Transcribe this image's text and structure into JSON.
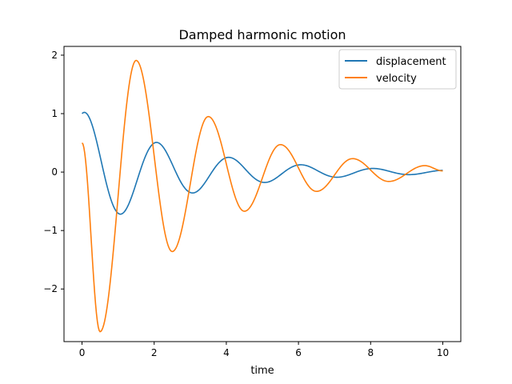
{
  "chart_data": {
    "type": "line",
    "title": "Damped harmonic motion",
    "xlabel": "time",
    "ylabel": "",
    "xlim": [
      -0.5,
      10.5
    ],
    "ylim": [
      -2.9,
      2.15
    ],
    "xticks": [
      0,
      2,
      4,
      6,
      8,
      10
    ],
    "yticks": [
      -2,
      -1,
      0,
      1,
      2
    ],
    "xtick_labels": [
      "0",
      "2",
      "4",
      "6",
      "8",
      "10"
    ],
    "ytick_labels": [
      "−2",
      "−1",
      "0",
      "1",
      "2"
    ],
    "grid": false,
    "legend_position": "top-right",
    "x_range": [
      0,
      10
    ],
    "series": [
      {
        "name": "displacement",
        "color": "#1f77b4",
        "keypoints": [
          {
            "x": 0.0,
            "y": 1.0
          },
          {
            "x": 1.05,
            "y": -0.71
          },
          {
            "x": 2.05,
            "y": 0.5
          },
          {
            "x": 3.05,
            "y": -0.36
          },
          {
            "x": 4.05,
            "y": 0.25
          },
          {
            "x": 5.05,
            "y": -0.18
          },
          {
            "x": 6.05,
            "y": 0.12
          },
          {
            "x": 7.05,
            "y": -0.09
          },
          {
            "x": 8.05,
            "y": 0.06
          },
          {
            "x": 9.05,
            "y": -0.04
          },
          {
            "x": 10.0,
            "y": 0.03
          }
        ],
        "model": {
          "amplitude": 1.0,
          "decay": 0.35,
          "omega": 3.1416,
          "phase_offset": 0.1
        }
      },
      {
        "name": "velocity",
        "color": "#ff7f0e",
        "keypoints": [
          {
            "x": 0.0,
            "y": 0.5
          },
          {
            "x": 0.5,
            "y": -2.73
          },
          {
            "x": 1.5,
            "y": 1.91
          },
          {
            "x": 2.5,
            "y": -1.36
          },
          {
            "x": 3.5,
            "y": 0.95
          },
          {
            "x": 4.5,
            "y": -0.67
          },
          {
            "x": 5.5,
            "y": 0.47
          },
          {
            "x": 6.5,
            "y": -0.33
          },
          {
            "x": 7.5,
            "y": 0.23
          },
          {
            "x": 8.5,
            "y": -0.16
          },
          {
            "x": 9.5,
            "y": 0.11
          },
          {
            "x": 10.0,
            "y": 0.02
          }
        ]
      }
    ]
  }
}
